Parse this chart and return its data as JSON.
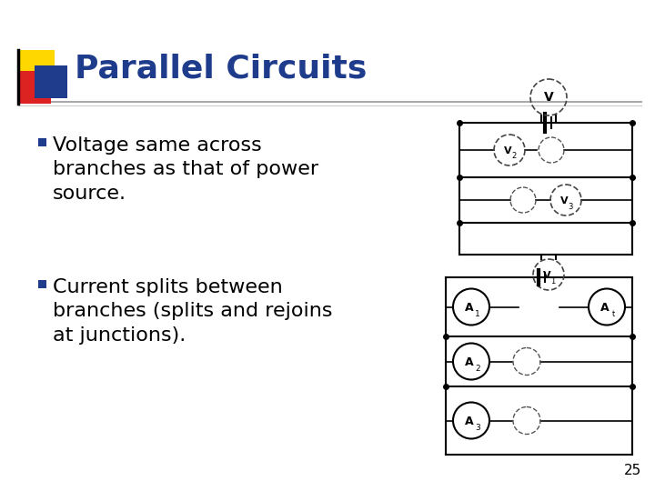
{
  "title": "Parallel Circuits",
  "title_color": "#1F3B8C",
  "title_fontsize": 26,
  "background_color": "#FFFFFF",
  "bullet1": "Voltage same across\nbranches as that of power\nsource.",
  "bullet2": "Current splits between\nbranches (splits and rejoins\nat junctions).",
  "bullet_fontsize": 16,
  "bullet_color": "#000000",
  "slide_number": "25",
  "accent_yellow": "#FFD700",
  "accent_red": "#DD2222",
  "accent_blue": "#1F3B8C"
}
